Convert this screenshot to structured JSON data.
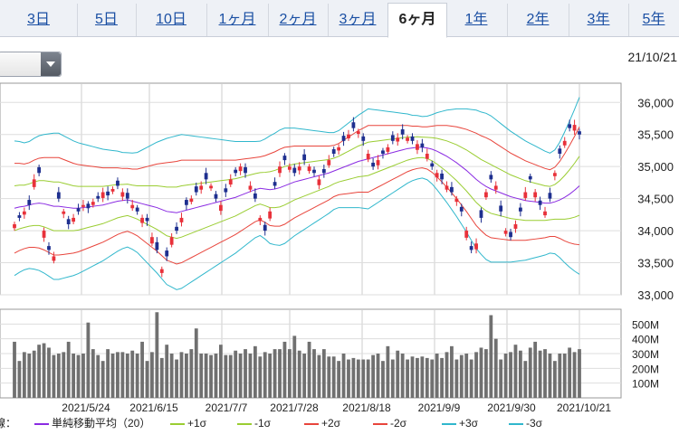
{
  "tabs": [
    {
      "label": "3日",
      "active": false
    },
    {
      "label": "5日",
      "active": false
    },
    {
      "label": "10日",
      "active": false
    },
    {
      "label": "1ヶ月",
      "active": false
    },
    {
      "label": "2ヶ月",
      "active": false
    },
    {
      "label": "3ヶ月",
      "active": false
    },
    {
      "label": "6ヶ月",
      "active": true
    },
    {
      "label": "1年",
      "active": false
    },
    {
      "label": "2年",
      "active": false
    },
    {
      "label": "3年",
      "active": false
    },
    {
      "label": "5年",
      "active": false
    }
  ],
  "header": {
    "date": "21/10/21"
  },
  "legend": {
    "prefix": "線：",
    "items": [
      {
        "label": "単純移動平均（20）",
        "color": "#8a2be2"
      },
      {
        "label": "+1σ",
        "color": "#9acd32"
      },
      {
        "label": "-1σ",
        "color": "#9acd32"
      },
      {
        "label": "+2σ",
        "color": "#e8453c"
      },
      {
        "label": "-2σ",
        "color": "#e8453c"
      },
      {
        "label": "+3σ",
        "color": "#30b7cc"
      },
      {
        "label": "-3σ",
        "color": "#30b7cc"
      }
    ]
  },
  "chart_data": [
    {
      "type": "candlestick",
      "title": "",
      "ylim": [
        33000,
        36300
      ],
      "y_ticks": [
        "36,000",
        "35,500",
        "35,000",
        "34,500",
        "34,000",
        "33,500",
        "33,000"
      ],
      "x_ticks": [
        "2021/5/24",
        "2021/6/15",
        "2021/7/7",
        "2021/7/28",
        "2021/8/18",
        "2021/9/9",
        "2021/9/30",
        "2021/10/21"
      ],
      "close": [
        34100,
        34200,
        34300,
        34400,
        34800,
        34900,
        34000,
        33700,
        33600,
        34500,
        34300,
        34100,
        34200,
        34300,
        34400,
        34350,
        34450,
        34500,
        34600,
        34550,
        34650,
        34700,
        34600,
        34500,
        34400,
        34300,
        34200,
        34150,
        33900,
        33700,
        33400,
        33600,
        33900,
        34000,
        34200,
        34400,
        34500,
        34600,
        34700,
        34800,
        34700,
        34500,
        34400,
        34600,
        34800,
        34900,
        35000,
        34900,
        34700,
        34500,
        34200,
        34000,
        34300,
        34700,
        35000,
        35100,
        35000,
        34900,
        35000,
        35100,
        35000,
        34900,
        34800,
        34900,
        35100,
        35200,
        35300,
        35400,
        35500,
        35600,
        35550,
        35400,
        35200,
        35000,
        35100,
        35200,
        35300,
        35400,
        35450,
        35500,
        35450,
        35400,
        35350,
        35300,
        35200,
        35000,
        34900,
        34800,
        34700,
        34600,
        34500,
        34300,
        34000,
        33700,
        33800,
        34200,
        34600,
        34800,
        34700,
        34300,
        34000,
        33900,
        34100,
        34300,
        34600,
        34800,
        34600,
        34400,
        34300,
        34500,
        34900,
        35200,
        35400,
        35600,
        35650,
        35500
      ],
      "open_delta": [
        -60,
        40,
        -50,
        80,
        -120,
        90,
        -110,
        60,
        -70,
        100,
        -40,
        80,
        -60,
        50,
        -30,
        70,
        -50,
        40,
        -90,
        60,
        -40,
        80,
        -70,
        90,
        -50,
        60,
        -80,
        50,
        -100,
        120,
        -60,
        90,
        -120,
        60,
        -70,
        80,
        -50,
        90,
        -60,
        100,
        -40,
        70,
        -90,
        60,
        -80,
        50,
        -70,
        90,
        -60,
        80,
        -50,
        90,
        -110,
        60,
        -100,
        70,
        -50,
        80,
        -60,
        90,
        -70,
        50,
        -90,
        60,
        -80,
        70,
        -50,
        80,
        -60,
        90,
        -40,
        70,
        -90,
        60,
        -80,
        50,
        -70,
        90,
        -60,
        80,
        -50,
        70,
        -90,
        60,
        -80,
        50,
        -70,
        90,
        -60,
        80,
        -50,
        70,
        -110,
        60,
        -90,
        120,
        -80,
        70,
        -60,
        90,
        -50,
        80,
        -70,
        60,
        -90,
        50,
        -80,
        70,
        -60,
        90,
        -50,
        80,
        -70,
        60,
        -90,
        50
      ],
      "ma20": [
        34350,
        34370,
        34380,
        34400,
        34420,
        34430,
        34420,
        34400,
        34380,
        34380,
        34370,
        34360,
        34350,
        34350,
        34360,
        34370,
        34380,
        34390,
        34400,
        34420,
        34440,
        34460,
        34470,
        34480,
        34460,
        34440,
        34420,
        34400,
        34380,
        34360,
        34330,
        34300,
        34290,
        34280,
        34300,
        34320,
        34340,
        34360,
        34380,
        34400,
        34420,
        34440,
        34460,
        34480,
        34500,
        34520,
        34550,
        34580,
        34610,
        34640,
        34660,
        34650,
        34640,
        34650,
        34670,
        34700,
        34730,
        34760,
        34780,
        34800,
        34820,
        34840,
        34860,
        34880,
        34900,
        34930,
        34960,
        34990,
        35020,
        35050,
        35080,
        35100,
        35120,
        35140,
        35160,
        35180,
        35200,
        35220,
        35240,
        35260,
        35280,
        35290,
        35300,
        35300,
        35290,
        35270,
        35240,
        35200,
        35160,
        35110,
        35060,
        35000,
        34940,
        34870,
        34800,
        34740,
        34690,
        34650,
        34620,
        34590,
        34560,
        34530,
        34510,
        34490,
        34470,
        34460,
        34450,
        34440,
        34430,
        34430,
        34450,
        34480,
        34520,
        34570,
        34630,
        34700
      ],
      "sigma": [
        350,
        340,
        330,
        330,
        340,
        350,
        360,
        370,
        380,
        380,
        370,
        360,
        350,
        340,
        330,
        320,
        310,
        300,
        290,
        280,
        270,
        260,
        250,
        245,
        250,
        260,
        280,
        300,
        320,
        340,
        360,
        380,
        390,
        400,
        400,
        390,
        380,
        370,
        360,
        350,
        340,
        330,
        320,
        310,
        300,
        290,
        280,
        270,
        260,
        250,
        245,
        260,
        280,
        290,
        300,
        300,
        290,
        280,
        270,
        260,
        250,
        240,
        230,
        220,
        210,
        200,
        200,
        210,
        220,
        230,
        240,
        250,
        260,
        250,
        240,
        230,
        220,
        210,
        200,
        190,
        180,
        170,
        165,
        160,
        165,
        180,
        200,
        220,
        240,
        260,
        280,
        300,
        320,
        340,
        360,
        370,
        380,
        380,
        370,
        360,
        350,
        340,
        330,
        320,
        310,
        300,
        290,
        280,
        270,
        260,
        270,
        300,
        340,
        380,
        420,
        460
      ]
    },
    {
      "type": "bar",
      "title": "",
      "ylim": [
        0,
        600
      ],
      "y_ticks": [
        "500M",
        "400M",
        "300M",
        "200M",
        "100M"
      ],
      "values": [
        380,
        250,
        310,
        300,
        320,
        360,
        370,
        340,
        290,
        300,
        310,
        380,
        300,
        290,
        300,
        510,
        330,
        290,
        250,
        330,
        300,
        310,
        310,
        300,
        320,
        300,
        380,
        250,
        310,
        580,
        270,
        360,
        300,
        260,
        310,
        300,
        330,
        470,
        300,
        300,
        290,
        300,
        360,
        290,
        290,
        320,
        300,
        330,
        300,
        350,
        280,
        310,
        300,
        330,
        330,
        380,
        330,
        420,
        320,
        300,
        380,
        330,
        290,
        330,
        280,
        280,
        250,
        300,
        260,
        270,
        260,
        260,
        260,
        290,
        300,
        250,
        350,
        260,
        320,
        300,
        260,
        280,
        270,
        280,
        270,
        260,
        300,
        270,
        310,
        350,
        260,
        290,
        300,
        260,
        310,
        340,
        330,
        560,
        400,
        260,
        300,
        310,
        360,
        320,
        250,
        340,
        380,
        320,
        330,
        300,
        250,
        300,
        300,
        340,
        310,
        330
      ]
    }
  ]
}
